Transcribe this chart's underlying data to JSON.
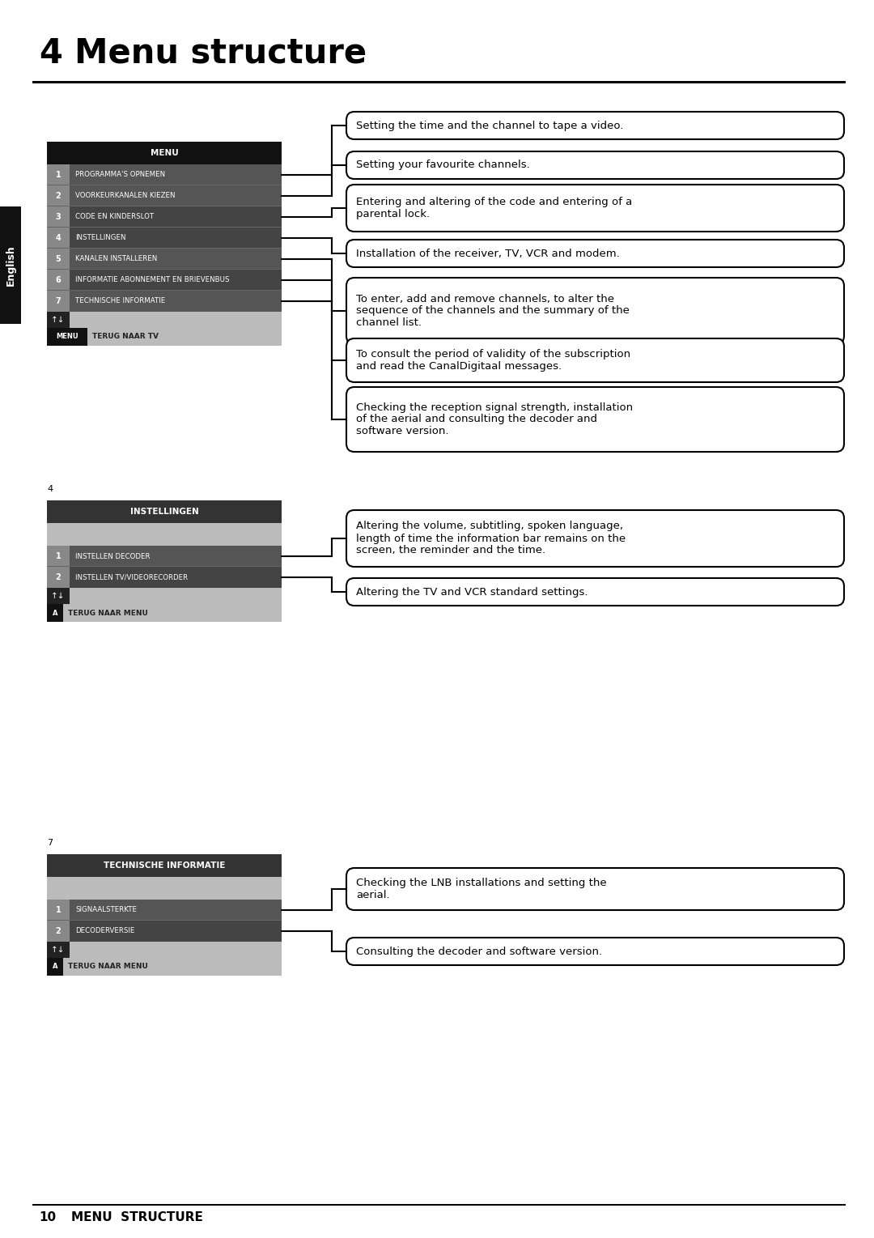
{
  "title_num": "4",
  "title_text": "Menu structure",
  "footer_num": "10",
  "footer_text": "MENU  STRUCTURE",
  "page_bg": "#ffffff",
  "menu1": {
    "header": "MENU",
    "header_bg": "#111111",
    "header_fg": "#ffffff",
    "items": [
      {
        "num": "1",
        "label": "PROGRAMMA'S OPNEMEN",
        "num_bg": "#888888",
        "row_bg": "#555555"
      },
      {
        "num": "2",
        "label": "VOORKEURKANALEN KIEZEN",
        "num_bg": "#888888",
        "row_bg": "#555555"
      },
      {
        "num": "3",
        "label": "CODE EN KINDERSLOT",
        "num_bg": "#888888",
        "row_bg": "#444444"
      },
      {
        "num": "4",
        "label": "INSTELLINGEN",
        "num_bg": "#888888",
        "row_bg": "#444444"
      },
      {
        "num": "5",
        "label": "KANALEN INSTALLEREN",
        "num_bg": "#888888",
        "row_bg": "#555555"
      },
      {
        "num": "6",
        "label": "INFORMATIE ABONNEMENT EN BRIEVENBUS",
        "num_bg": "#888888",
        "row_bg": "#444444"
      },
      {
        "num": "7",
        "label": "TECHNISCHE INFORMATIE",
        "num_bg": "#888888",
        "row_bg": "#555555"
      }
    ],
    "footer_label": "MENU",
    "footer_text": "TERUG NAAR TV"
  },
  "menu1_descriptions": [
    "Setting the time and the channel to tape a video.",
    "Setting your favourite channels.",
    "Entering and altering of the code and entering of a\nparental lock.",
    "Installation of the receiver, TV, VCR and modem.",
    "To enter, add and remove channels, to alter the\nsequence of the channels and the summary of the\nchannel list.",
    "To consult the period of validity of the subscription\nand read the CanalDigitaal messages.",
    "Checking the reception signal strength, installation\nof the aerial and consulting the decoder and\nsoftware version."
  ],
  "menu2": {
    "number": "4",
    "header": "INSTELLINGEN",
    "header_bg": "#333333",
    "items": [
      {
        "num": "1",
        "label": "INSTELLEN DECODER",
        "num_bg": "#888888",
        "row_bg": "#555555"
      },
      {
        "num": "2",
        "label": "INSTELLEN TV/VIDEORECORDER",
        "num_bg": "#888888",
        "row_bg": "#444444"
      }
    ],
    "footer_label": "A",
    "footer_text": "TERUG NAAR MENU"
  },
  "menu2_descriptions": [
    "Altering the volume, subtitling, spoken language,\nlength of time the information bar remains on the\nscreen, the reminder and the time.",
    "Altering the TV and VCR standard settings."
  ],
  "menu3": {
    "number": "7",
    "header": "TECHNISCHE INFORMATIE",
    "header_bg": "#333333",
    "items": [
      {
        "num": "1",
        "label": "SIGNAALSTERKTE",
        "num_bg": "#888888",
        "row_bg": "#555555"
      },
      {
        "num": "2",
        "label": "DECODERVERSIE",
        "num_bg": "#888888",
        "row_bg": "#444444"
      }
    ],
    "footer_label": "A",
    "footer_text": "TERUG NAAR MENU"
  },
  "menu3_descriptions": [
    "Checking the LNB installations and setting the\naerial.",
    "Consulting the decoder and software version."
  ],
  "english_tab": {
    "text": "English",
    "bg": "#111111",
    "fg": "#ffffff"
  }
}
